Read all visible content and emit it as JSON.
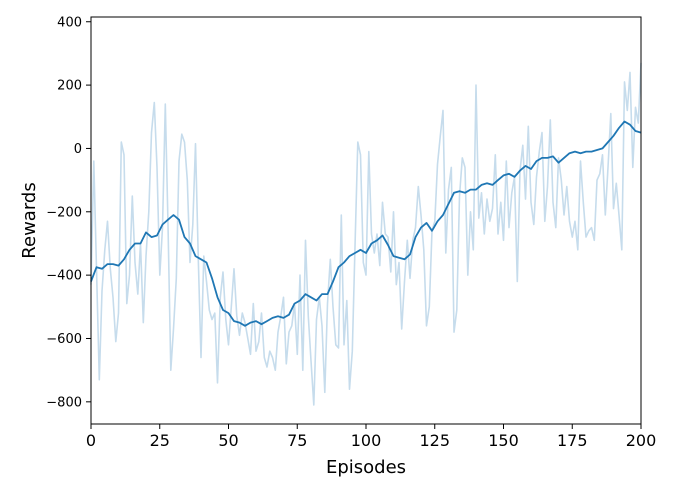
{
  "chart_data": {
    "type": "line",
    "title": "",
    "xlabel": "Episodes",
    "ylabel": "Rewards",
    "xlim": [
      0,
      200
    ],
    "ylim": [
      -870,
      415
    ],
    "xticks": [
      0,
      25,
      50,
      75,
      100,
      125,
      150,
      175,
      200
    ],
    "yticks": [
      400,
      200,
      0,
      -200,
      -400,
      -600,
      -800
    ],
    "xtick_labels": [
      "0",
      "25",
      "50",
      "75",
      "100",
      "125",
      "150",
      "175",
      "200"
    ],
    "ytick_labels": [
      "400",
      "200",
      "0",
      "−200",
      "−400",
      "−600",
      "−800"
    ],
    "grid": false,
    "colors": {
      "raw": "#c6dcec",
      "smoothed": "#1f77b4"
    },
    "series": [
      {
        "points": [
          [
            0,
            -430
          ],
          [
            1,
            -40
          ],
          [
            2,
            -380
          ],
          [
            3,
            -730
          ],
          [
            4,
            -450
          ],
          [
            5,
            -320
          ],
          [
            6,
            -230
          ],
          [
            7,
            -380
          ],
          [
            8,
            -470
          ],
          [
            9,
            -610
          ],
          [
            10,
            -520
          ],
          [
            11,
            20
          ],
          [
            12,
            -20
          ],
          [
            13,
            -490
          ],
          [
            14,
            -400
          ],
          [
            15,
            -150
          ],
          [
            16,
            -360
          ],
          [
            17,
            -460
          ],
          [
            18,
            -300
          ],
          [
            19,
            -550
          ],
          [
            20,
            -340
          ],
          [
            21,
            -200
          ],
          [
            22,
            50
          ],
          [
            23,
            145
          ],
          [
            24,
            -60
          ],
          [
            25,
            -400
          ],
          [
            26,
            -250
          ],
          [
            27,
            140
          ],
          [
            28,
            -240
          ],
          [
            29,
            -700
          ],
          [
            30,
            -570
          ],
          [
            31,
            -410
          ],
          [
            32,
            -40
          ],
          [
            33,
            45
          ],
          [
            34,
            20
          ],
          [
            35,
            -100
          ],
          [
            36,
            -360
          ],
          [
            37,
            -240
          ],
          [
            38,
            15
          ],
          [
            39,
            -350
          ],
          [
            40,
            -660
          ],
          [
            41,
            -340
          ],
          [
            42,
            -420
          ],
          [
            43,
            -510
          ],
          [
            44,
            -540
          ],
          [
            45,
            -520
          ],
          [
            46,
            -740
          ],
          [
            47,
            -470
          ],
          [
            48,
            -390
          ],
          [
            49,
            -540
          ],
          [
            50,
            -620
          ],
          [
            51,
            -500
          ],
          [
            52,
            -380
          ],
          [
            53,
            -530
          ],
          [
            54,
            -590
          ],
          [
            55,
            -520
          ],
          [
            56,
            -550
          ],
          [
            57,
            -600
          ],
          [
            58,
            -650
          ],
          [
            59,
            -490
          ],
          [
            60,
            -640
          ],
          [
            61,
            -610
          ],
          [
            62,
            -520
          ],
          [
            63,
            -660
          ],
          [
            64,
            -690
          ],
          [
            65,
            -640
          ],
          [
            66,
            -660
          ],
          [
            67,
            -700
          ],
          [
            68,
            -580
          ],
          [
            69,
            -530
          ],
          [
            70,
            -470
          ],
          [
            71,
            -680
          ],
          [
            72,
            -580
          ],
          [
            73,
            -560
          ],
          [
            74,
            -490
          ],
          [
            75,
            -650
          ],
          [
            76,
            -400
          ],
          [
            77,
            -700
          ],
          [
            78,
            -290
          ],
          [
            79,
            -530
          ],
          [
            80,
            -670
          ],
          [
            81,
            -810
          ],
          [
            82,
            -540
          ],
          [
            83,
            -470
          ],
          [
            84,
            -560
          ],
          [
            85,
            -770
          ],
          [
            86,
            -490
          ],
          [
            87,
            -350
          ],
          [
            88,
            -500
          ],
          [
            89,
            -620
          ],
          [
            90,
            -630
          ],
          [
            91,
            -210
          ],
          [
            92,
            -620
          ],
          [
            93,
            -480
          ],
          [
            94,
            -760
          ],
          [
            95,
            -640
          ],
          [
            96,
            -310
          ],
          [
            97,
            20
          ],
          [
            98,
            -20
          ],
          [
            99,
            -360
          ],
          [
            100,
            -400
          ],
          [
            101,
            -10
          ],
          [
            102,
            -270
          ],
          [
            103,
            -330
          ],
          [
            104,
            -270
          ],
          [
            105,
            -370
          ],
          [
            106,
            -170
          ],
          [
            107,
            -270
          ],
          [
            108,
            -280
          ],
          [
            109,
            -390
          ],
          [
            110,
            -200
          ],
          [
            111,
            -430
          ],
          [
            112,
            -360
          ],
          [
            113,
            -570
          ],
          [
            114,
            -420
          ],
          [
            115,
            -290
          ],
          [
            116,
            -410
          ],
          [
            117,
            -290
          ],
          [
            118,
            -250
          ],
          [
            119,
            -120
          ],
          [
            120,
            -210
          ],
          [
            121,
            -320
          ],
          [
            122,
            -560
          ],
          [
            123,
            -500
          ],
          [
            124,
            -260
          ],
          [
            125,
            -230
          ],
          [
            126,
            -50
          ],
          [
            127,
            40
          ],
          [
            128,
            120
          ],
          [
            129,
            -330
          ],
          [
            130,
            -130
          ],
          [
            131,
            -60
          ],
          [
            132,
            -580
          ],
          [
            133,
            -510
          ],
          [
            134,
            -150
          ],
          [
            135,
            -30
          ],
          [
            136,
            -60
          ],
          [
            137,
            -400
          ],
          [
            138,
            -200
          ],
          [
            139,
            -320
          ],
          [
            140,
            200
          ],
          [
            141,
            -220
          ],
          [
            142,
            -140
          ],
          [
            143,
            -270
          ],
          [
            144,
            -160
          ],
          [
            145,
            -230
          ],
          [
            146,
            -190
          ],
          [
            147,
            -20
          ],
          [
            148,
            -270
          ],
          [
            149,
            -170
          ],
          [
            150,
            -290
          ],
          [
            151,
            -40
          ],
          [
            152,
            -250
          ],
          [
            153,
            -140
          ],
          [
            154,
            -90
          ],
          [
            155,
            -420
          ],
          [
            156,
            -70
          ],
          [
            157,
            10
          ],
          [
            158,
            -160
          ],
          [
            159,
            70
          ],
          [
            160,
            -170
          ],
          [
            161,
            -240
          ],
          [
            162,
            -90
          ],
          [
            163,
            -10
          ],
          [
            164,
            50
          ],
          [
            165,
            -230
          ],
          [
            166,
            -120
          ],
          [
            167,
            90
          ],
          [
            168,
            -170
          ],
          [
            169,
            -250
          ],
          [
            170,
            -30
          ],
          [
            171,
            -100
          ],
          [
            172,
            -210
          ],
          [
            173,
            -120
          ],
          [
            174,
            -230
          ],
          [
            175,
            -280
          ],
          [
            176,
            -230
          ],
          [
            177,
            -320
          ],
          [
            178,
            -40
          ],
          [
            179,
            -170
          ],
          [
            180,
            -280
          ],
          [
            181,
            -260
          ],
          [
            182,
            -250
          ],
          [
            183,
            -290
          ],
          [
            184,
            -100
          ],
          [
            185,
            -80
          ],
          [
            186,
            -20
          ],
          [
            187,
            -210
          ],
          [
            188,
            -60
          ],
          [
            189,
            110
          ],
          [
            190,
            -190
          ],
          [
            191,
            -110
          ],
          [
            192,
            -210
          ],
          [
            193,
            -320
          ],
          [
            194,
            210
          ],
          [
            195,
            120
          ],
          [
            196,
            240
          ],
          [
            197,
            -60
          ],
          [
            198,
            130
          ],
          [
            199,
            80
          ],
          [
            200,
            270
          ]
        ]
      },
      {
        "points": [
          [
            0,
            -420
          ],
          [
            2,
            -375
          ],
          [
            4,
            -380
          ],
          [
            6,
            -365
          ],
          [
            8,
            -365
          ],
          [
            10,
            -370
          ],
          [
            12,
            -350
          ],
          [
            14,
            -320
          ],
          [
            16,
            -300
          ],
          [
            18,
            -300
          ],
          [
            20,
            -265
          ],
          [
            22,
            -280
          ],
          [
            24,
            -275
          ],
          [
            26,
            -240
          ],
          [
            28,
            -225
          ],
          [
            30,
            -210
          ],
          [
            32,
            -225
          ],
          [
            34,
            -280
          ],
          [
            36,
            -300
          ],
          [
            38,
            -340
          ],
          [
            40,
            -350
          ],
          [
            42,
            -360
          ],
          [
            44,
            -410
          ],
          [
            46,
            -470
          ],
          [
            48,
            -510
          ],
          [
            50,
            -520
          ],
          [
            52,
            -545
          ],
          [
            54,
            -550
          ],
          [
            56,
            -560
          ],
          [
            58,
            -550
          ],
          [
            60,
            -545
          ],
          [
            62,
            -555
          ],
          [
            64,
            -545
          ],
          [
            66,
            -535
          ],
          [
            68,
            -530
          ],
          [
            70,
            -535
          ],
          [
            72,
            -525
          ],
          [
            74,
            -490
          ],
          [
            76,
            -480
          ],
          [
            78,
            -460
          ],
          [
            80,
            -470
          ],
          [
            82,
            -480
          ],
          [
            84,
            -460
          ],
          [
            86,
            -460
          ],
          [
            88,
            -420
          ],
          [
            90,
            -375
          ],
          [
            92,
            -360
          ],
          [
            94,
            -340
          ],
          [
            96,
            -330
          ],
          [
            98,
            -320
          ],
          [
            100,
            -330
          ],
          [
            102,
            -300
          ],
          [
            104,
            -290
          ],
          [
            106,
            -275
          ],
          [
            108,
            -305
          ],
          [
            110,
            -340
          ],
          [
            112,
            -345
          ],
          [
            114,
            -350
          ],
          [
            116,
            -335
          ],
          [
            118,
            -280
          ],
          [
            120,
            -250
          ],
          [
            122,
            -235
          ],
          [
            124,
            -260
          ],
          [
            126,
            -230
          ],
          [
            128,
            -210
          ],
          [
            130,
            -175
          ],
          [
            132,
            -140
          ],
          [
            134,
            -135
          ],
          [
            136,
            -140
          ],
          [
            138,
            -130
          ],
          [
            140,
            -130
          ],
          [
            142,
            -115
          ],
          [
            144,
            -110
          ],
          [
            146,
            -115
          ],
          [
            148,
            -100
          ],
          [
            150,
            -85
          ],
          [
            152,
            -80
          ],
          [
            154,
            -90
          ],
          [
            156,
            -70
          ],
          [
            158,
            -55
          ],
          [
            160,
            -65
          ],
          [
            162,
            -40
          ],
          [
            164,
            -30
          ],
          [
            166,
            -30
          ],
          [
            168,
            -25
          ],
          [
            170,
            -45
          ],
          [
            172,
            -30
          ],
          [
            174,
            -15
          ],
          [
            176,
            -10
          ],
          [
            178,
            -15
          ],
          [
            180,
            -10
          ],
          [
            182,
            -10
          ],
          [
            184,
            -5
          ],
          [
            186,
            0
          ],
          [
            188,
            20
          ],
          [
            190,
            40
          ],
          [
            192,
            65
          ],
          [
            194,
            85
          ],
          [
            196,
            75
          ],
          [
            198,
            55
          ],
          [
            200,
            50
          ]
        ]
      }
    ]
  }
}
